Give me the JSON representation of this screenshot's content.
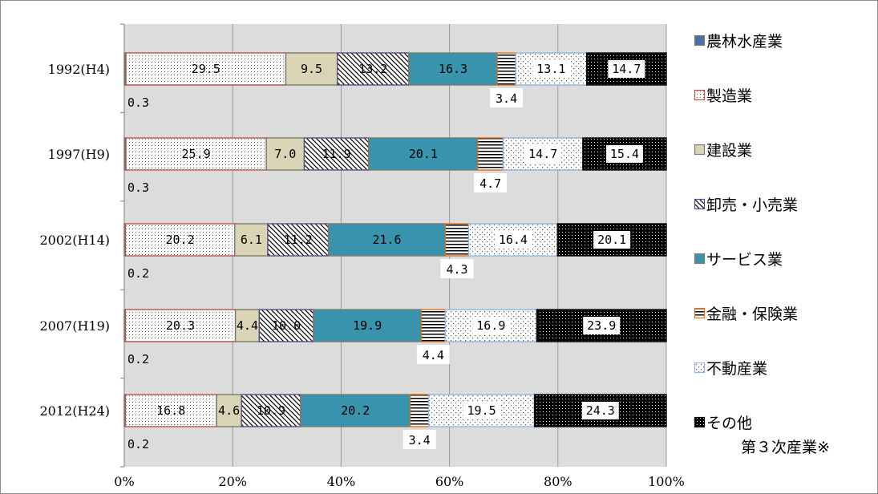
{
  "chart_data": {
    "type": "bar",
    "orientation": "horizontal",
    "stacked": "percent",
    "categories": [
      "1992(H4)",
      "1997(H9)",
      "2002(H14)",
      "2007(H19)",
      "2012(H24)"
    ],
    "series": [
      {
        "name": "農林水産業",
        "values": [
          0.3,
          0.3,
          0.2,
          0.2,
          0.2
        ],
        "color": "#4a6fa5",
        "pattern": "solid"
      },
      {
        "name": "製造業",
        "values": [
          29.5,
          25.9,
          20.2,
          20.3,
          16.8
        ],
        "color": "#c0504d",
        "pattern": "dots"
      },
      {
        "name": "建設業",
        "values": [
          9.5,
          7.0,
          6.1,
          4.4,
          4.6
        ],
        "color": "#d9d4b5",
        "pattern": "solid"
      },
      {
        "name": "卸売・小売業",
        "values": [
          13.2,
          11.9,
          11.2,
          10.0,
          10.9
        ],
        "color": "#5b4b8a",
        "pattern": "diagonal"
      },
      {
        "name": "サービス業",
        "values": [
          16.3,
          20.1,
          21.6,
          19.9,
          20.2
        ],
        "color": "#3a93ac",
        "pattern": "solid"
      },
      {
        "name": "金融・保険業",
        "values": [
          3.4,
          4.7,
          4.3,
          4.4,
          3.4
        ],
        "color": "#e46c0a",
        "pattern": "horizontal"
      },
      {
        "name": "不動産業",
        "values": [
          13.1,
          14.7,
          16.4,
          16.9,
          19.5
        ],
        "color": "#8eb4e3",
        "pattern": "sparse-dots"
      },
      {
        "name": "その他 第３次産業※",
        "name_lines": [
          "その他",
          "第３次産業※"
        ],
        "values": [
          14.7,
          15.4,
          20.1,
          23.9,
          24.3
        ],
        "color": "#000000",
        "pattern": "dense"
      }
    ],
    "outside_labels": [
      {
        "series": 0,
        "row": 0,
        "text": "0.3"
      },
      {
        "series": 0,
        "row": 1,
        "text": "0.3"
      },
      {
        "series": 0,
        "row": 2,
        "text": "0.2"
      },
      {
        "series": 0,
        "row": 3,
        "text": "0.2"
      },
      {
        "series": 0,
        "row": 4,
        "text": "0.2"
      },
      {
        "series": 5,
        "row": 0,
        "text": "3.4"
      },
      {
        "series": 5,
        "row": 1,
        "text": "4.7"
      },
      {
        "series": 5,
        "row": 2,
        "text": "4.3"
      },
      {
        "series": 5,
        "row": 3,
        "text": "4.4"
      },
      {
        "series": 5,
        "row": 4,
        "text": "3.4"
      }
    ],
    "xticks": [
      "0%",
      "20%",
      "40%",
      "60%",
      "80%",
      "100%"
    ],
    "xlim": [
      0,
      100
    ],
    "grid": true,
    "plot_background": "#dcdcdc",
    "legend_position": "right"
  }
}
